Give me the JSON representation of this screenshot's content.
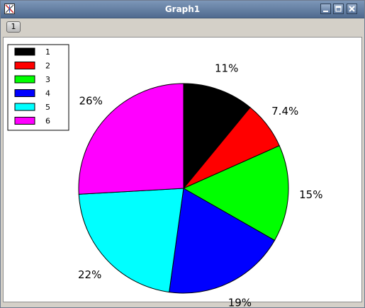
{
  "window": {
    "title": "Graph1",
    "page_tab": "1"
  },
  "icons": {
    "app": "graph-window-icon",
    "minimize": "minimize-icon",
    "maximize": "maximize-icon",
    "close": "close-icon"
  },
  "chart_data": {
    "type": "pie",
    "categories": [
      "1",
      "2",
      "3",
      "4",
      "5",
      "6"
    ],
    "values": [
      11,
      7.4,
      15,
      19,
      22,
      26
    ],
    "labels": [
      "11%",
      "7.4%",
      "15%",
      "19%",
      "22%",
      "26%"
    ],
    "colors": [
      "#000000",
      "#ff0000",
      "#00ff00",
      "#0000ff",
      "#00ffff",
      "#ff00ff"
    ],
    "start_angle": "12 o'clock",
    "direction": "clockwise",
    "legend_position": "top-left"
  }
}
